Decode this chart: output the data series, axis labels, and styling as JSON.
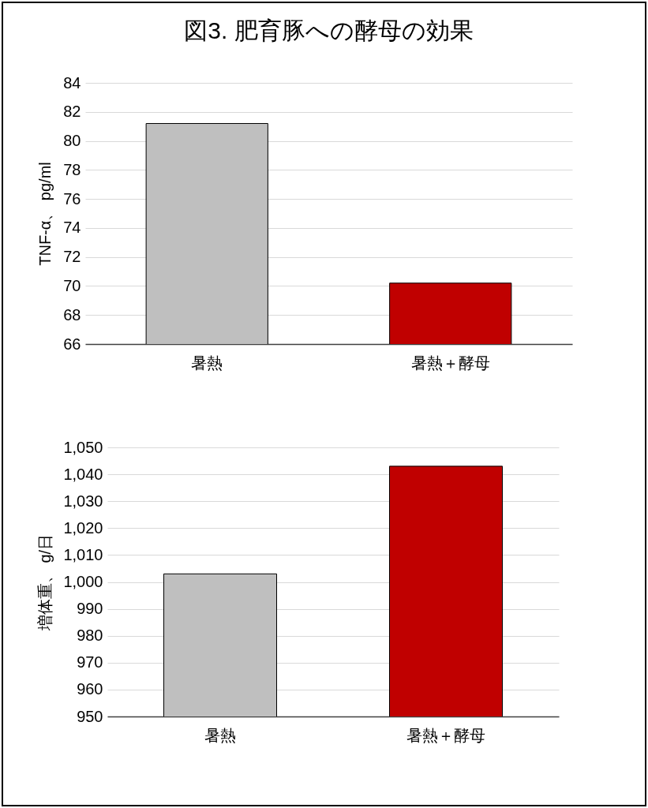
{
  "chart_data": [
    {
      "type": "bar",
      "title": "図3.  肥育豚への酵母の効果",
      "ylabel": "TNF-α、 pg/ml",
      "categories": [
        "暑熱",
        "暑熱＋酵母"
      ],
      "values": [
        81.2,
        70.2
      ],
      "colors": [
        "#bfbfbf",
        "#c00000"
      ],
      "ylim": [
        66,
        84
      ],
      "yticks": [
        66,
        68,
        70,
        72,
        74,
        76,
        78,
        80,
        82,
        84
      ],
      "grid": "y",
      "legend": false
    },
    {
      "type": "bar",
      "ylabel": "増体重、 g/日",
      "categories": [
        "暑熱",
        "暑熱＋酵母"
      ],
      "values": [
        1003,
        1043
      ],
      "colors": [
        "#bfbfbf",
        "#c00000"
      ],
      "ylim": [
        950,
        1050
      ],
      "yticks": [
        950,
        960,
        970,
        980,
        990,
        {
          "value": 1000,
          "label": "1,000"
        },
        {
          "value": 1010,
          "label": "1,010"
        },
        {
          "value": 1020,
          "label": "1,020"
        },
        {
          "value": 1030,
          "label": "1,030"
        },
        {
          "value": 1040,
          "label": "1,040"
        },
        {
          "value": 1050,
          "label": "1,050"
        }
      ],
      "grid": "y",
      "legend": false
    }
  ]
}
